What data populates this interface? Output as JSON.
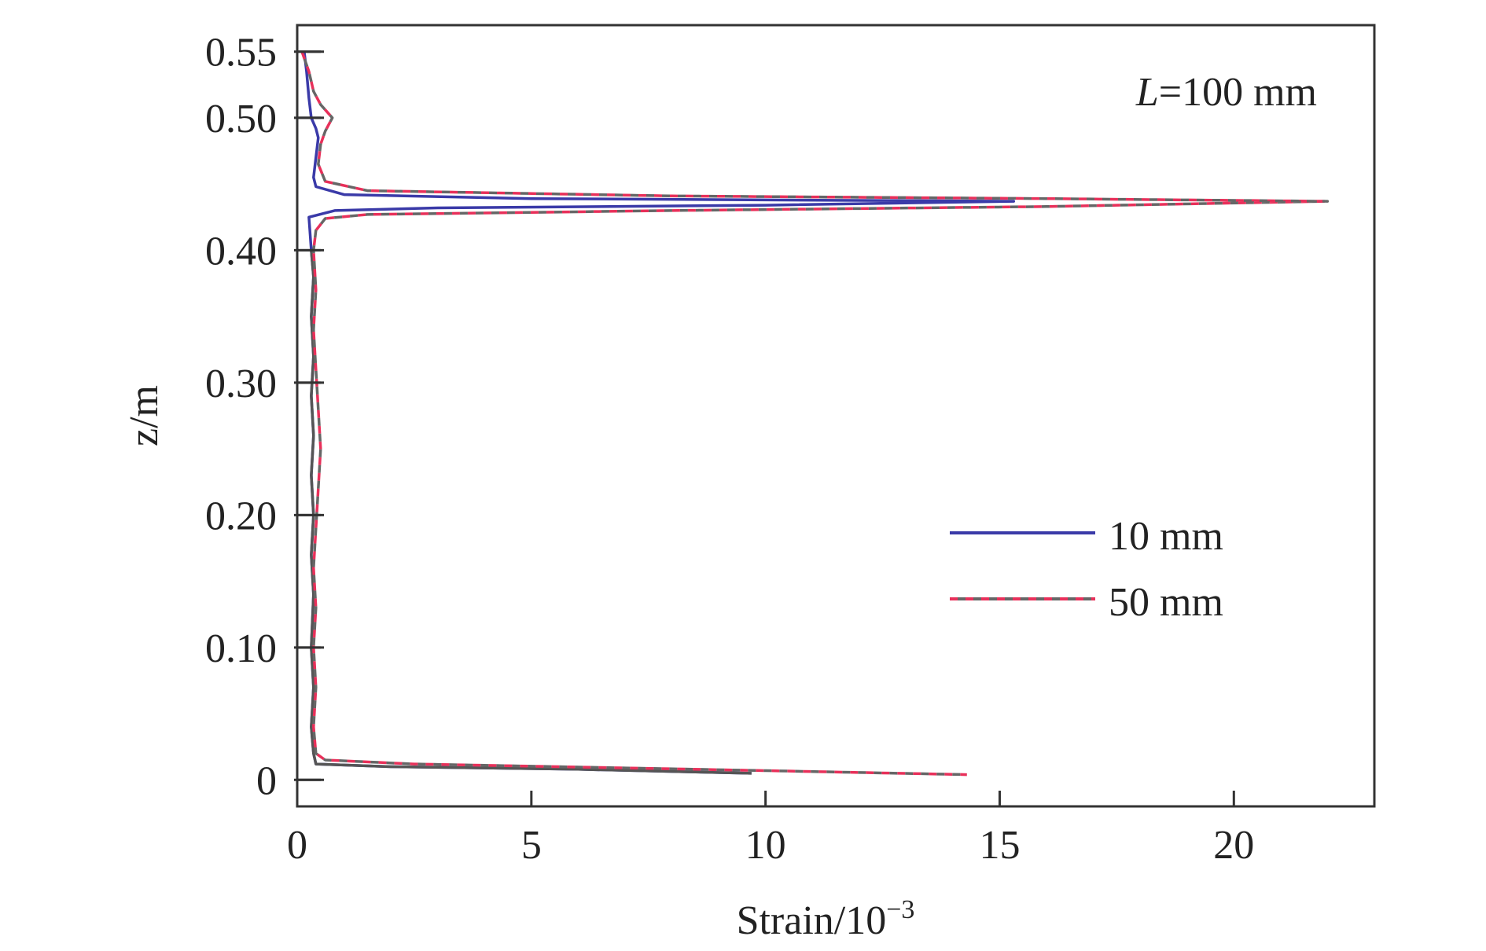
{
  "chart_data": {
    "type": "line",
    "xlabel": "Strain/10",
    "xlabel_sup": "−3",
    "ylabel": "z/m",
    "xlim": [
      0,
      23
    ],
    "ylim": [
      -0.02,
      0.57
    ],
    "xticks": [
      0,
      5,
      10,
      15,
      20
    ],
    "xtick_labels": [
      "0",
      "5",
      "10",
      "15",
      "20"
    ],
    "yticks": [
      0,
      0.1,
      0.2,
      0.3,
      0.4,
      0.5,
      0.55
    ],
    "ytick_labels": [
      "0",
      "0.10",
      "0.20",
      "0.30",
      "0.40",
      "0.50",
      "0.55"
    ],
    "grid": false,
    "legend_position": "right",
    "annotation": {
      "italic": "L",
      "text": "=100 mm"
    },
    "series": [
      {
        "name": "10 mm",
        "style": "solid",
        "colors": [
          "#3a3aa8",
          "#555555"
        ],
        "points": [
          [
            0.15,
            0.55
          ],
          [
            0.2,
            0.535
          ],
          [
            0.25,
            0.515
          ],
          [
            0.3,
            0.5
          ],
          [
            0.4,
            0.492
          ],
          [
            0.45,
            0.485
          ],
          [
            0.4,
            0.47
          ],
          [
            0.35,
            0.455
          ],
          [
            0.4,
            0.448
          ],
          [
            1.0,
            0.442
          ],
          [
            5.0,
            0.439
          ],
          [
            15.3,
            0.437
          ],
          [
            10.0,
            0.434
          ],
          [
            3.0,
            0.432
          ],
          [
            0.8,
            0.43
          ],
          [
            0.25,
            0.425
          ],
          [
            0.3,
            0.4
          ],
          [
            0.35,
            0.38
          ],
          [
            0.3,
            0.35
          ],
          [
            0.35,
            0.32
          ],
          [
            0.3,
            0.29
          ],
          [
            0.35,
            0.26
          ],
          [
            0.3,
            0.23
          ],
          [
            0.35,
            0.2
          ],
          [
            0.3,
            0.17
          ],
          [
            0.35,
            0.14
          ],
          [
            0.3,
            0.1
          ],
          [
            0.35,
            0.07
          ],
          [
            0.3,
            0.04
          ],
          [
            0.35,
            0.02
          ],
          [
            0.4,
            0.012
          ],
          [
            2.0,
            0.01
          ],
          [
            6.0,
            0.008
          ],
          [
            9.7,
            0.005
          ]
        ]
      },
      {
        "name": "50 mm",
        "style": "dashed",
        "colors": [
          "#e8305a",
          "#666666"
        ],
        "points": [
          [
            0.1,
            0.55
          ],
          [
            0.25,
            0.535
          ],
          [
            0.35,
            0.52
          ],
          [
            0.5,
            0.51
          ],
          [
            0.75,
            0.5
          ],
          [
            0.6,
            0.49
          ],
          [
            0.5,
            0.48
          ],
          [
            0.45,
            0.465
          ],
          [
            0.6,
            0.452
          ],
          [
            1.5,
            0.445
          ],
          [
            8.0,
            0.441
          ],
          [
            16.0,
            0.439
          ],
          [
            22.0,
            0.437
          ],
          [
            16.0,
            0.433
          ],
          [
            8.0,
            0.43
          ],
          [
            1.5,
            0.427
          ],
          [
            0.6,
            0.424
          ],
          [
            0.4,
            0.415
          ],
          [
            0.35,
            0.4
          ],
          [
            0.4,
            0.37
          ],
          [
            0.35,
            0.34
          ],
          [
            0.4,
            0.31
          ],
          [
            0.45,
            0.28
          ],
          [
            0.5,
            0.25
          ],
          [
            0.45,
            0.22
          ],
          [
            0.4,
            0.19
          ],
          [
            0.35,
            0.16
          ],
          [
            0.4,
            0.13
          ],
          [
            0.35,
            0.1
          ],
          [
            0.4,
            0.07
          ],
          [
            0.35,
            0.04
          ],
          [
            0.4,
            0.02
          ],
          [
            0.6,
            0.015
          ],
          [
            2.5,
            0.012
          ],
          [
            7.0,
            0.009
          ],
          [
            10.0,
            0.007
          ],
          [
            14.3,
            0.004
          ]
        ]
      }
    ]
  }
}
